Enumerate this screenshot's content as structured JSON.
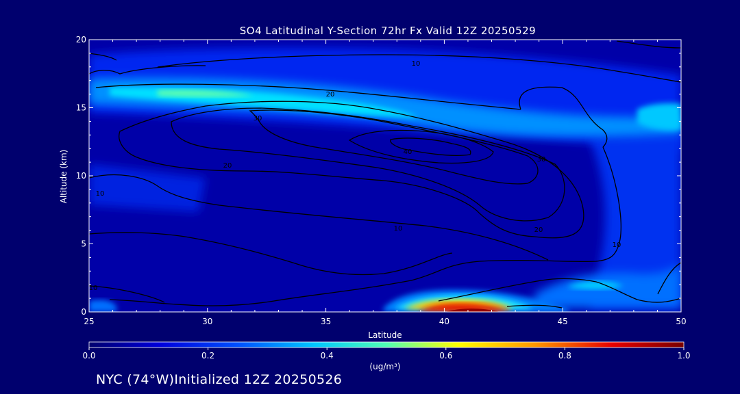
{
  "chart_data": {
    "type": "heatmap",
    "title": "SO4 Latitudinal Y-Section 72hr  Fx Valid 12Z 20250529",
    "xlabel": "Latitude",
    "ylabel": "Altitude (km)",
    "xlim": [
      25,
      50
    ],
    "ylim": [
      0,
      20
    ],
    "x_ticks": [
      "25",
      "30",
      "35",
      "40",
      "45",
      "50"
    ],
    "y_ticks": [
      "0",
      "5",
      "10",
      "15",
      "20"
    ],
    "colorbar": {
      "label": "(ug/m³)",
      "ticks": [
        "0.0",
        "0.2",
        "0.4",
        "0.6",
        "0.8",
        "1.0"
      ],
      "range": [
        0.0,
        1.0
      ],
      "colors": [
        "#000064",
        "#0000dc",
        "#0064ff",
        "#00dcff",
        "#64ff96",
        "#ffff00",
        "#ff8c00",
        "#dc0000",
        "#780000"
      ]
    },
    "shaded_features": [
      {
        "description": "upper-level band",
        "lat": [
          25,
          50
        ],
        "alt": [
          13.5,
          17
        ],
        "value_max": 0.5,
        "value_at_lat_30": 0.5
      },
      {
        "description": "surface maximum",
        "lat": [
          37,
          46
        ],
        "alt": [
          0,
          0.7
        ],
        "value_max": 0.9
      },
      {
        "description": "low-level plume",
        "lat": [
          44,
          50
        ],
        "alt": [
          1,
          2.5
        ],
        "value_max": 0.3
      }
    ],
    "contour_labels": [
      "10",
      "20",
      "30",
      "40"
    ]
  },
  "footer": "NYC (74°W)Initialized 12Z 20250526"
}
